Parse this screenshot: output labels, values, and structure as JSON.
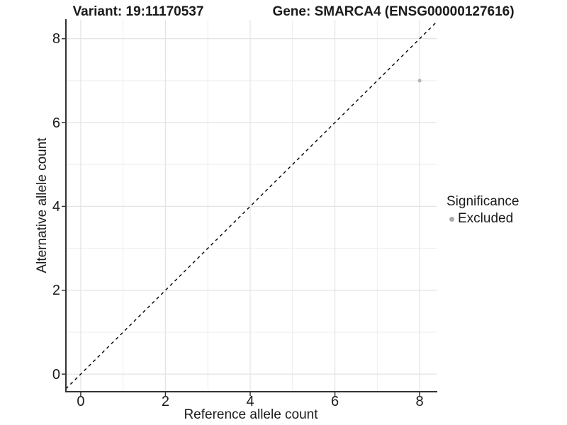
{
  "header": {
    "variant_title": "Variant: 19:11170537",
    "gene_title": "Gene: SMARCA4 (ENSG00000127616)"
  },
  "chart_data": {
    "type": "scatter",
    "xlabel": "Reference allele count",
    "ylabel": "Alternative allele count",
    "x_ticks": [
      0,
      2,
      4,
      6,
      8
    ],
    "y_ticks": [
      0,
      2,
      4,
      6,
      8
    ],
    "x_minor": [
      1,
      3,
      5,
      7
    ],
    "y_minor": [
      1,
      3,
      5,
      7
    ],
    "xlim": [
      -0.35,
      8.4
    ],
    "ylim": [
      -0.42,
      8.45
    ],
    "grid": "on",
    "legend_position": "right",
    "identity_line": {
      "slope": 1,
      "intercept": 0,
      "style": "dashed",
      "color": "#000000"
    },
    "series": [
      {
        "name": "Excluded",
        "points": [
          {
            "x": 8,
            "y": 7
          }
        ],
        "color": "#b4b4b4"
      }
    ],
    "legend": {
      "title": "Significance",
      "entries": [
        {
          "label": "Excluded",
          "color": "#ababab",
          "marker": "circle"
        }
      ]
    }
  },
  "colors": {
    "background": "#ffffff",
    "grid_major": "#e3e3e3",
    "grid_minor": "#eeeeee",
    "axis_line": "#333333",
    "tick_mark": "#333333",
    "text": "#1a1a1a",
    "point": "#b4b4b4"
  }
}
